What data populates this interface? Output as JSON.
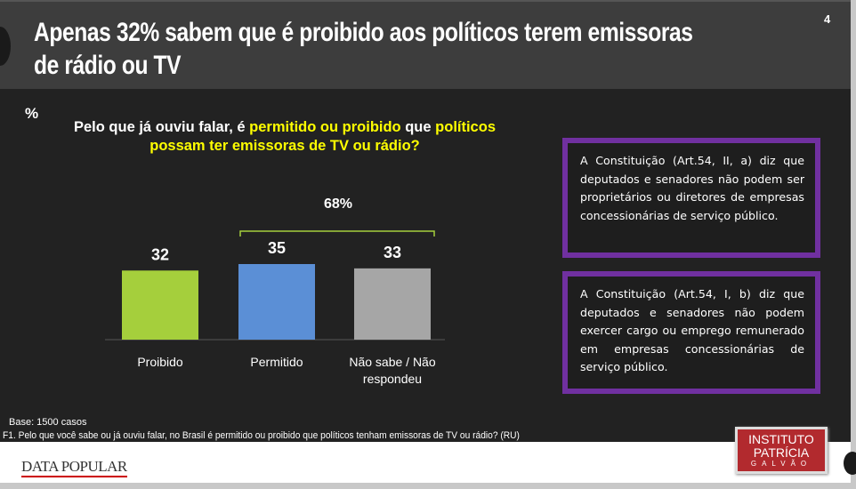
{
  "page_number": "4",
  "title_line1": "Apenas 32% sabem que é proibido aos políticos terem emissoras",
  "title_line2": "de rádio ou TV",
  "unit_label": "%",
  "question": {
    "part1": "Pelo que já ouviu falar, é ",
    "highlight1": "permitido ou proibido",
    "part2": " que ",
    "highlight2": "políticos possam ter emissoras de TV ou rádio?"
  },
  "chart_data": {
    "type": "bar",
    "categories": [
      "Proibido",
      "Permitido",
      "Não sabe / Não respondeu"
    ],
    "category_lines": [
      [
        "Proibido"
      ],
      [
        "Permitido"
      ],
      [
        "Não sabe / Não",
        "respondeu"
      ]
    ],
    "values": [
      32,
      35,
      33
    ],
    "value_labels": [
      "32",
      "35",
      "33"
    ],
    "colors": [
      "#a5cf3c",
      "#5b8fd6",
      "#a6a6a6"
    ],
    "bracket": {
      "label": "68%",
      "spans": [
        "Permitido",
        "Não sabe / Não respondeu"
      ],
      "color": "#a5cf3c"
    },
    "ylim": [
      0,
      40
    ]
  },
  "box1": "A Constituição (Art.54, II, a) diz que deputados e senadores não podem ser proprietários ou diretores de empresas concessionárias de serviço público.",
  "box2": "A Constituição (Art.54, I, b) diz que deputados e senadores não podem exercer cargo ou emprego remunerado em empresas concessionárias de serviço público.",
  "base": "Base: 1500 casos",
  "footnote": "F1. Pelo que você sabe ou já ouviu falar, no Brasil é permitido ou proibido que políticos tenham emissoras de TV ou rádio? (RU)",
  "logo_left": "DATA POPULAR",
  "logo_right": {
    "line1": "INSTITUTO",
    "line2": "PATRÍCIA",
    "line3": "GALVÃO"
  }
}
